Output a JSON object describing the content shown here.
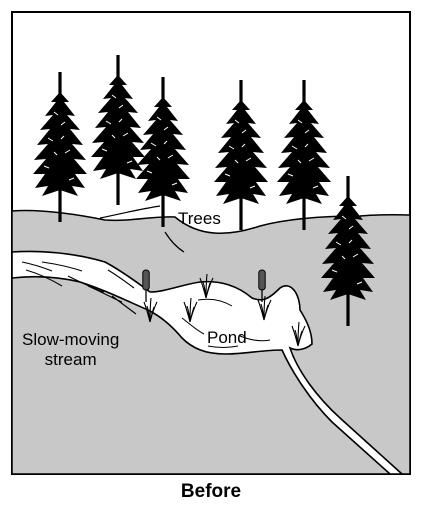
{
  "labels": {
    "trees": "Trees",
    "pond": "Pond",
    "stream_line1": "Slow-moving",
    "stream_line2": "stream"
  },
  "caption": "Before",
  "colors": {
    "sky": "#ffffff",
    "ground": "#c8c8c8",
    "water": "#ffffff",
    "ink": "#000000",
    "cattail": "#555555"
  },
  "icons": [
    "tree-icon",
    "cattail-icon",
    "grass-tuft-icon"
  ]
}
